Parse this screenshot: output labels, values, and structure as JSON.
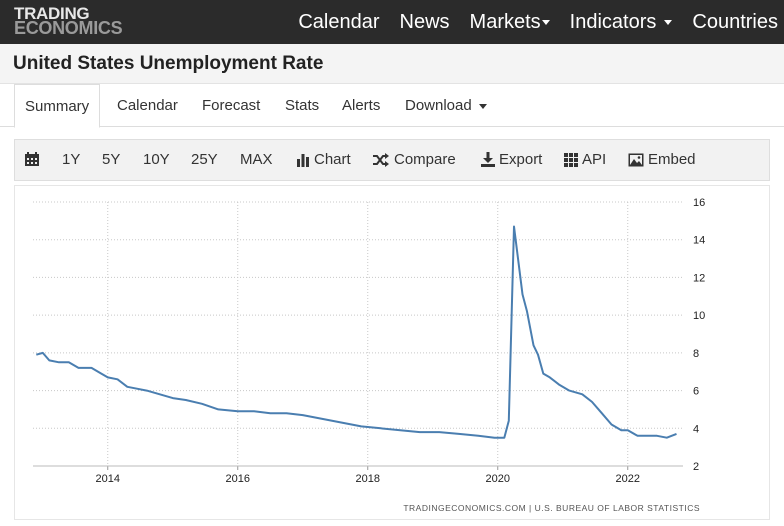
{
  "nav": {
    "logo_line1": "TRADING",
    "logo_line2": "ECONOMICS",
    "links": [
      "Calendar",
      "News",
      "Markets",
      "Indicators",
      "Countries"
    ]
  },
  "page_title": "United States Unemployment Rate",
  "tabs": [
    "Summary",
    "Calendar",
    "Forecast",
    "Stats",
    "Alerts",
    "Download"
  ],
  "toolbar": {
    "ranges": [
      "1Y",
      "5Y",
      "10Y",
      "25Y",
      "MAX"
    ],
    "chart_label": "Chart",
    "compare_label": "Compare",
    "export_label": "Export",
    "api_label": "API",
    "embed_label": "Embed"
  },
  "source_text": "TRADINGECONOMICS.COM | U.S. BUREAU OF LABOR STATISTICS",
  "colors": {
    "line": "#4a7eb0",
    "nav_bg": "#2b2b2b"
  },
  "chart_data": {
    "type": "line",
    "title": "",
    "xlabel": "",
    "ylabel": "",
    "y_axis_position": "right",
    "grid": "vertical dotted",
    "ylim": [
      2,
      16
    ],
    "yticks": [
      2,
      4,
      6,
      8,
      10,
      12,
      14,
      16
    ],
    "xlim": [
      2012.85,
      2022.85
    ],
    "xticks": [
      2014,
      2016,
      2018,
      2020,
      2022
    ],
    "series": [
      {
        "name": "",
        "x": [
          2012.9,
          2013.0,
          2013.1,
          2013.25,
          2013.4,
          2013.55,
          2013.75,
          2013.9,
          2014.0,
          2014.15,
          2014.3,
          2014.45,
          2014.6,
          2014.8,
          2015.0,
          2015.2,
          2015.45,
          2015.7,
          2016.0,
          2016.25,
          2016.5,
          2016.75,
          2017.0,
          2017.3,
          2017.6,
          2017.9,
          2018.2,
          2018.5,
          2018.8,
          2019.1,
          2019.4,
          2019.7,
          2019.95,
          2020.1,
          2020.17,
          2020.25,
          2020.3,
          2020.38,
          2020.45,
          2020.55,
          2020.62,
          2020.7,
          2020.8,
          2020.95,
          2021.1,
          2021.3,
          2021.45,
          2021.6,
          2021.75,
          2021.9,
          2022.0,
          2022.15,
          2022.3,
          2022.45,
          2022.6,
          2022.75
        ],
        "y": [
          7.9,
          8.0,
          7.6,
          7.5,
          7.5,
          7.2,
          7.2,
          6.9,
          6.7,
          6.6,
          6.2,
          6.1,
          6.0,
          5.8,
          5.6,
          5.5,
          5.3,
          5.0,
          4.9,
          4.9,
          4.8,
          4.8,
          4.7,
          4.5,
          4.3,
          4.1,
          4.0,
          3.9,
          3.8,
          3.8,
          3.7,
          3.6,
          3.5,
          3.5,
          4.4,
          14.7,
          13.3,
          11.1,
          10.2,
          8.4,
          7.9,
          6.9,
          6.7,
          6.3,
          6.0,
          5.8,
          5.4,
          4.8,
          4.2,
          3.9,
          3.9,
          3.6,
          3.6,
          3.6,
          3.5,
          3.7
        ]
      }
    ]
  }
}
